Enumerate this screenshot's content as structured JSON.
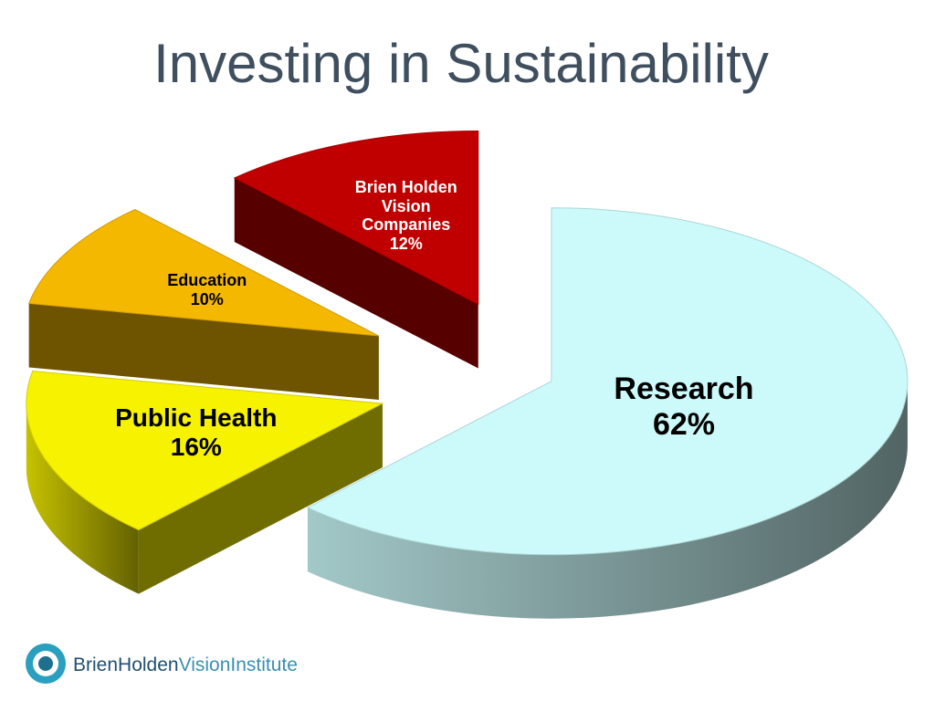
{
  "chart_data": {
    "type": "pie",
    "title": "Investing in Sustainability",
    "categories": [
      "Research",
      "Public Health",
      "Education",
      "Brien Holden Vision Companies"
    ],
    "values": [
      62,
      16,
      10,
      12
    ],
    "value_labels": [
      "62%",
      "16%",
      "10%",
      "12%"
    ],
    "colors": [
      "#ccfafa",
      "#f7f200",
      "#f5b800",
      "#c00000"
    ]
  },
  "footer": {
    "logo_bold": "BrienHolden",
    "logo_light": "VisionInstitute"
  }
}
